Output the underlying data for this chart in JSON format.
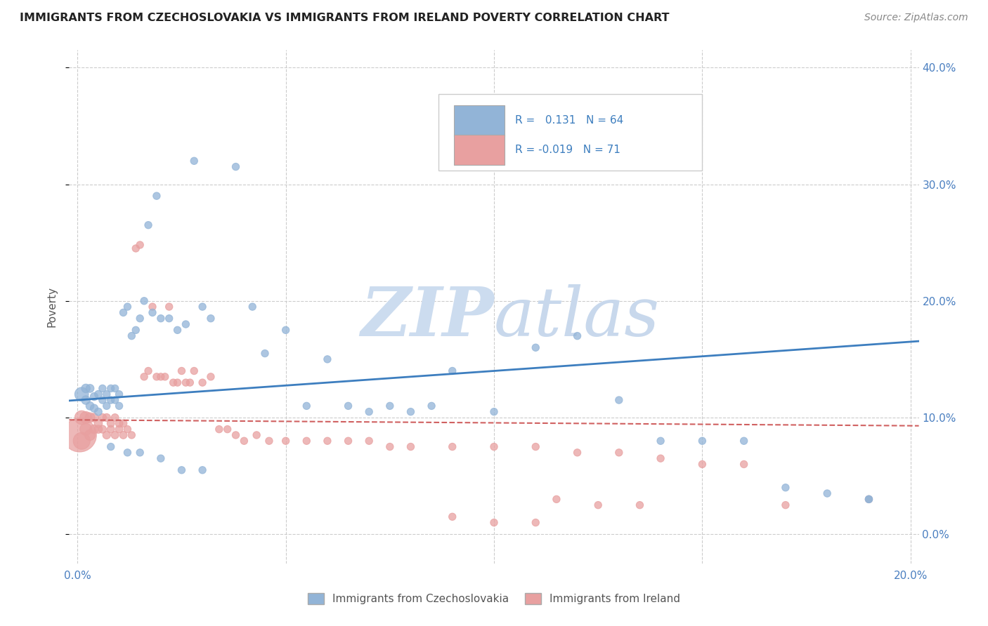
{
  "title": "IMMIGRANTS FROM CZECHOSLOVAKIA VS IMMIGRANTS FROM IRELAND POVERTY CORRELATION CHART",
  "source": "Source: ZipAtlas.com",
  "ylabel": "Poverty",
  "xlim": [
    0.0,
    0.2
  ],
  "ylim": [
    -0.02,
    0.42
  ],
  "plot_ylim": [
    0.0,
    0.4
  ],
  "xticks": [
    0.0,
    0.05,
    0.1,
    0.15,
    0.2
  ],
  "yticks": [
    0.0,
    0.1,
    0.2,
    0.3,
    0.4
  ],
  "xticklabels": [
    "0.0%",
    "",
    "",
    "",
    "20.0%"
  ],
  "yticklabels_right": [
    "0.0%",
    "10.0%",
    "20.0%",
    "30.0%",
    "40.0%"
  ],
  "color_blue": "#92b4d7",
  "color_pink": "#e8a0a0",
  "color_line_blue": "#3d7ebf",
  "color_line_pink": "#d06060",
  "watermark_color": "#dce9f5",
  "tick_color": "#4a7fc0",
  "legend_label1": "Immigrants from Czechoslovakia",
  "legend_label2": "Immigrants from Ireland",
  "blue_line_y0": 0.115,
  "blue_line_y1": 0.165,
  "pink_line_y0": 0.098,
  "pink_line_y1": 0.093,
  "blue_pts_x": [
    0.001,
    0.002,
    0.002,
    0.003,
    0.003,
    0.004,
    0.004,
    0.005,
    0.005,
    0.006,
    0.006,
    0.007,
    0.007,
    0.008,
    0.008,
    0.009,
    0.009,
    0.01,
    0.01,
    0.011,
    0.012,
    0.013,
    0.014,
    0.015,
    0.016,
    0.017,
    0.018,
    0.019,
    0.02,
    0.022,
    0.024,
    0.026,
    0.028,
    0.03,
    0.032,
    0.038,
    0.042,
    0.045,
    0.05,
    0.055,
    0.06,
    0.065,
    0.07,
    0.075,
    0.08,
    0.085,
    0.09,
    0.1,
    0.11,
    0.12,
    0.13,
    0.14,
    0.15,
    0.16,
    0.17,
    0.18,
    0.19,
    0.008,
    0.012,
    0.015,
    0.02,
    0.025,
    0.03,
    0.19
  ],
  "blue_pts_y": [
    0.12,
    0.115,
    0.125,
    0.11,
    0.125,
    0.108,
    0.118,
    0.105,
    0.12,
    0.115,
    0.125,
    0.11,
    0.12,
    0.115,
    0.125,
    0.115,
    0.125,
    0.11,
    0.12,
    0.19,
    0.195,
    0.17,
    0.175,
    0.185,
    0.2,
    0.265,
    0.19,
    0.29,
    0.185,
    0.185,
    0.175,
    0.18,
    0.32,
    0.195,
    0.185,
    0.315,
    0.195,
    0.155,
    0.175,
    0.11,
    0.15,
    0.11,
    0.105,
    0.11,
    0.105,
    0.11,
    0.14,
    0.105,
    0.16,
    0.17,
    0.115,
    0.08,
    0.08,
    0.08,
    0.04,
    0.035,
    0.03,
    0.075,
    0.07,
    0.07,
    0.065,
    0.055,
    0.055,
    0.03
  ],
  "blue_pts_s": [
    200,
    80,
    80,
    70,
    70,
    65,
    65,
    60,
    60,
    55,
    55,
    55,
    55,
    55,
    55,
    55,
    55,
    55,
    55,
    55,
    55,
    55,
    55,
    55,
    55,
    55,
    55,
    55,
    55,
    55,
    55,
    55,
    55,
    55,
    55,
    55,
    55,
    55,
    55,
    55,
    55,
    55,
    55,
    55,
    55,
    55,
    55,
    55,
    55,
    55,
    55,
    55,
    55,
    55,
    55,
    55,
    55,
    55,
    55,
    55,
    55,
    55,
    55,
    55
  ],
  "pink_pts_x": [
    0.0005,
    0.001,
    0.001,
    0.002,
    0.002,
    0.003,
    0.003,
    0.004,
    0.004,
    0.005,
    0.005,
    0.006,
    0.006,
    0.007,
    0.007,
    0.008,
    0.008,
    0.009,
    0.009,
    0.01,
    0.01,
    0.011,
    0.011,
    0.012,
    0.013,
    0.014,
    0.015,
    0.016,
    0.017,
    0.018,
    0.019,
    0.02,
    0.021,
    0.022,
    0.023,
    0.024,
    0.025,
    0.026,
    0.027,
    0.028,
    0.03,
    0.032,
    0.034,
    0.036,
    0.038,
    0.04,
    0.043,
    0.046,
    0.05,
    0.055,
    0.06,
    0.065,
    0.07,
    0.075,
    0.08,
    0.09,
    0.1,
    0.11,
    0.12,
    0.13,
    0.14,
    0.15,
    0.16,
    0.17,
    0.115,
    0.125,
    0.135,
    0.09,
    0.1,
    0.11,
    0.19
  ],
  "pink_pts_y": [
    0.085,
    0.08,
    0.1,
    0.09,
    0.1,
    0.085,
    0.1,
    0.09,
    0.1,
    0.09,
    0.095,
    0.09,
    0.1,
    0.085,
    0.1,
    0.09,
    0.095,
    0.085,
    0.1,
    0.09,
    0.095,
    0.085,
    0.095,
    0.09,
    0.085,
    0.245,
    0.248,
    0.135,
    0.14,
    0.195,
    0.135,
    0.135,
    0.135,
    0.195,
    0.13,
    0.13,
    0.14,
    0.13,
    0.13,
    0.14,
    0.13,
    0.135,
    0.09,
    0.09,
    0.085,
    0.08,
    0.085,
    0.08,
    0.08,
    0.08,
    0.08,
    0.08,
    0.08,
    0.075,
    0.075,
    0.075,
    0.075,
    0.075,
    0.07,
    0.07,
    0.065,
    0.06,
    0.06,
    0.025,
    0.03,
    0.025,
    0.025,
    0.015,
    0.01,
    0.01,
    0.03
  ],
  "pink_pts_s": [
    1200,
    300,
    200,
    150,
    150,
    120,
    100,
    80,
    80,
    70,
    70,
    65,
    65,
    65,
    65,
    60,
    60,
    60,
    60,
    60,
    60,
    60,
    60,
    55,
    55,
    55,
    55,
    55,
    55,
    55,
    55,
    55,
    55,
    55,
    55,
    55,
    55,
    55,
    55,
    55,
    55,
    55,
    55,
    55,
    55,
    55,
    55,
    55,
    55,
    55,
    55,
    55,
    55,
    55,
    55,
    55,
    55,
    55,
    55,
    55,
    55,
    55,
    55,
    55,
    55,
    55,
    55,
    55,
    55,
    55,
    55
  ]
}
